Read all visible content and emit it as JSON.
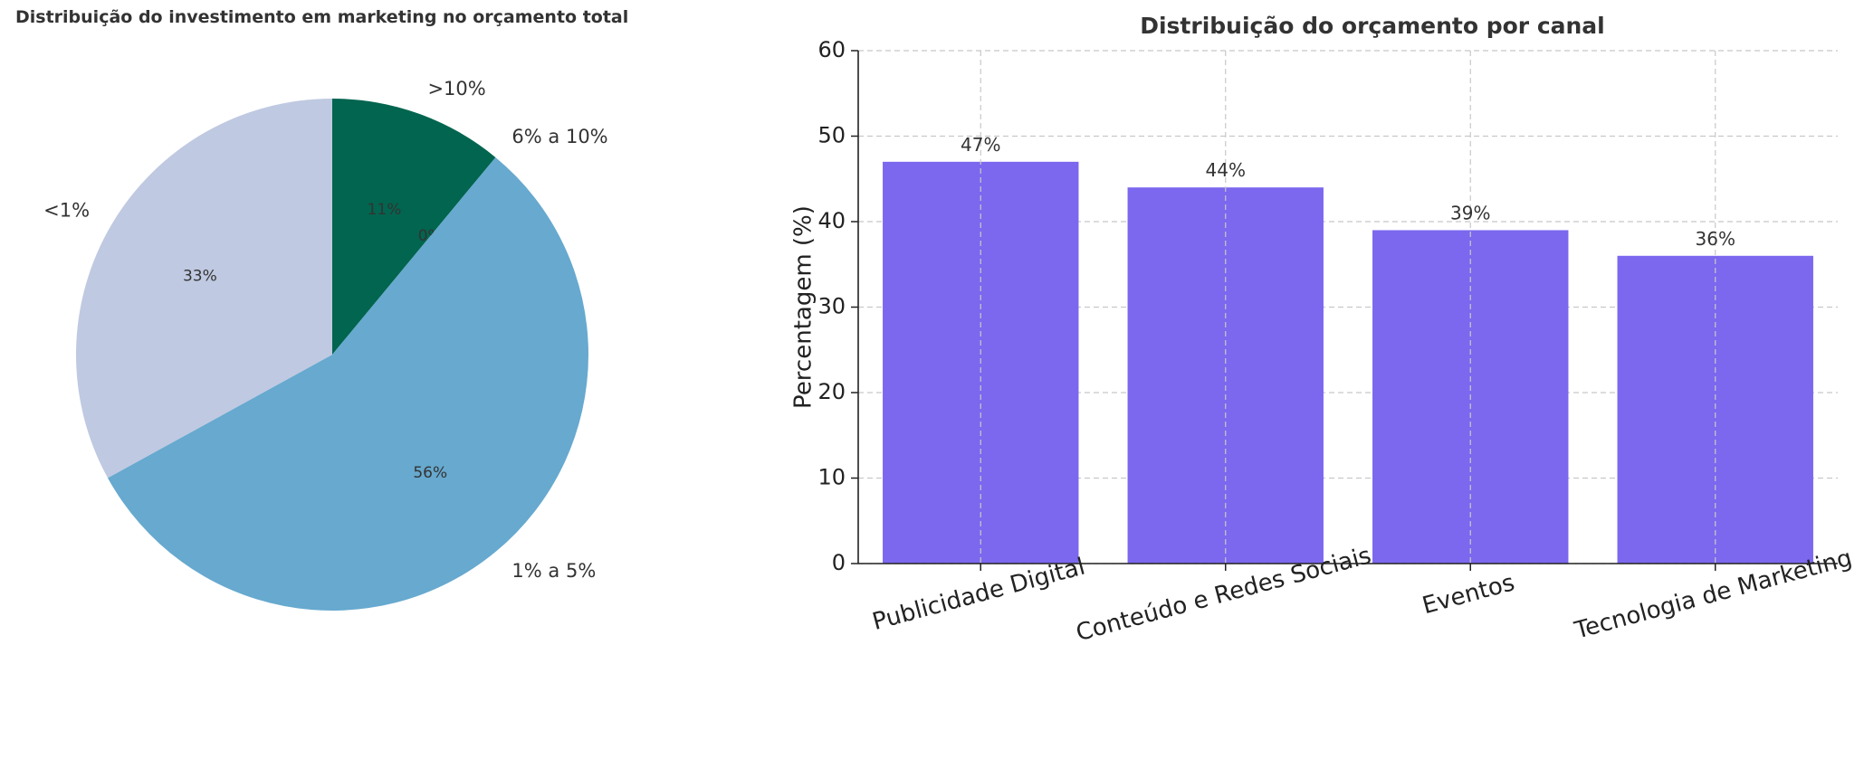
{
  "pie_title": "Distribuição do investimento em marketing no orçamento total",
  "bar_title": "Distribuição do orçamento por canal",
  "chart_data": [
    {
      "type": "pie",
      "title": "Distribuição do investimento em marketing no orçamento total",
      "labels": [
        ">10%",
        "6% a 10%",
        "1% a 5%",
        "<1%"
      ],
      "values": [
        11,
        0,
        56,
        33
      ],
      "pct_labels": [
        "11%",
        "0%",
        "56%",
        "33%"
      ],
      "colors": [
        "#02654f",
        "#1f78b4",
        "#67a9cf",
        "#bfc9e1"
      ],
      "start": "top, clockwise"
    },
    {
      "type": "bar",
      "title": "Distribuição do orçamento por canal",
      "categories": [
        "Publicidade Digital",
        "Conteúdo e Redes Sociais",
        "Eventos",
        "Tecnologia de Marketing"
      ],
      "values": [
        47,
        44,
        39,
        36
      ],
      "value_labels": [
        "47%",
        "44%",
        "39%",
        "36%"
      ],
      "xlabel": "",
      "ylabel": "Percentagem (%)",
      "ylim": [
        0,
        60
      ],
      "yticks": [
        0,
        10,
        20,
        30,
        40,
        50,
        60
      ],
      "ytick_labels": [
        "0",
        "10",
        "20",
        "30",
        "40",
        "50",
        "60"
      ],
      "grid": true,
      "color": "#7b68ee"
    }
  ]
}
